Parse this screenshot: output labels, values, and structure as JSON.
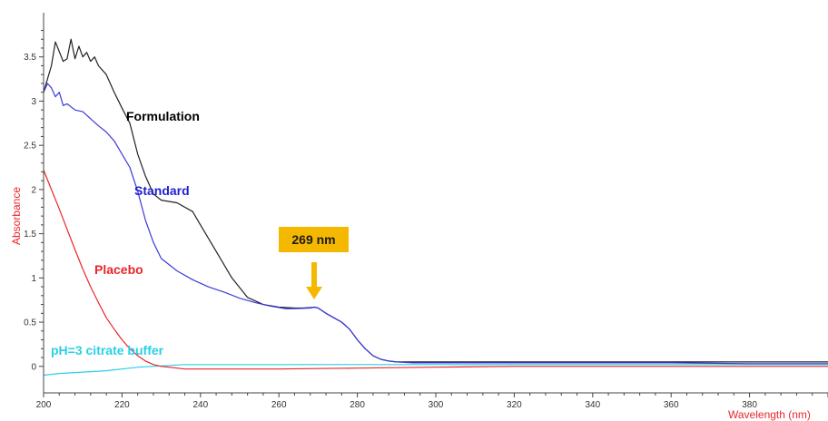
{
  "chart_data": {
    "type": "line",
    "xlabel": "Wavelength (nm)",
    "ylabel": "Absorbance",
    "xlim": [
      200,
      400
    ],
    "ylim": [
      -0.3,
      4.0
    ],
    "x_ticks": [
      200,
      220,
      240,
      260,
      280,
      300,
      320,
      340,
      360,
      380
    ],
    "y_ticks": [
      0,
      0.5,
      1,
      1.5,
      2,
      2.5,
      3,
      3.5
    ],
    "y_tick_labels": [
      "0",
      "0.5",
      "1",
      "1.5",
      "2",
      "2.5",
      "3",
      "3.5"
    ],
    "grid": false,
    "colors": {
      "axis_title_y": "#e8262b",
      "axis_title_x": "#e8262b",
      "callout_box": "#f5b800",
      "callout_arrow": "#f5b800"
    },
    "series": [
      {
        "name": "Formulation",
        "color": "#222222",
        "label_color": "#000000",
        "x": [
          200,
          202,
          203,
          205,
          206,
          207,
          208,
          209,
          210,
          211,
          212,
          213,
          214,
          216,
          218,
          220,
          222,
          224,
          226,
          228,
          230,
          234,
          238,
          240,
          244,
          248,
          252,
          256,
          260,
          264,
          266,
          268,
          269,
          270,
          272,
          274,
          276,
          278,
          280,
          282,
          284,
          286,
          288,
          290,
          292,
          294,
          300,
          320,
          340,
          360,
          380,
          400
        ],
        "y": [
          3.1,
          3.4,
          3.67,
          3.45,
          3.48,
          3.7,
          3.48,
          3.62,
          3.5,
          3.55,
          3.45,
          3.5,
          3.4,
          3.3,
          3.1,
          2.92,
          2.75,
          2.4,
          2.15,
          1.95,
          1.88,
          1.85,
          1.75,
          1.6,
          1.3,
          1.0,
          0.78,
          0.7,
          0.67,
          0.66,
          0.66,
          0.665,
          0.67,
          0.66,
          0.6,
          0.55,
          0.5,
          0.42,
          0.3,
          0.2,
          0.12,
          0.08,
          0.06,
          0.05,
          0.05,
          0.05,
          0.05,
          0.05,
          0.05,
          0.05,
          0.05,
          0.05
        ]
      },
      {
        "name": "Standard",
        "color": "#3b3bd9",
        "label_color": "#1f1fd0",
        "x": [
          200,
          201,
          202,
          203,
          204,
          205,
          206,
          208,
          210,
          212,
          214,
          216,
          218,
          220,
          222,
          224,
          226,
          228,
          230,
          234,
          238,
          242,
          246,
          250,
          254,
          258,
          262,
          266,
          268,
          269,
          270,
          272,
          274,
          276,
          278,
          280,
          282,
          284,
          286,
          288,
          290,
          292,
          294,
          300,
          320,
          340,
          360,
          380,
          400
        ],
        "y": [
          3.1,
          3.2,
          3.15,
          3.05,
          3.1,
          2.95,
          2.97,
          2.9,
          2.88,
          2.8,
          2.72,
          2.65,
          2.55,
          2.4,
          2.25,
          1.98,
          1.65,
          1.4,
          1.22,
          1.08,
          0.98,
          0.9,
          0.84,
          0.77,
          0.72,
          0.68,
          0.65,
          0.655,
          0.66,
          0.67,
          0.66,
          0.6,
          0.55,
          0.5,
          0.42,
          0.3,
          0.2,
          0.12,
          0.08,
          0.06,
          0.05,
          0.045,
          0.04,
          0.04,
          0.04,
          0.04,
          0.04,
          0.03,
          0.03
        ]
      },
      {
        "name": "Placebo",
        "color": "#e8262b",
        "label_color": "#e8262b",
        "x": [
          200,
          202,
          204,
          206,
          208,
          210,
          212,
          214,
          216,
          218,
          220,
          222,
          224,
          226,
          228,
          230,
          232,
          234,
          236,
          238,
          240,
          244,
          250,
          260,
          280,
          300,
          320,
          340,
          360,
          380,
          400
        ],
        "y": [
          2.22,
          2.0,
          1.78,
          1.55,
          1.32,
          1.1,
          0.9,
          0.72,
          0.55,
          0.42,
          0.3,
          0.2,
          0.12,
          0.06,
          0.02,
          0.0,
          -0.01,
          -0.02,
          -0.03,
          -0.03,
          -0.03,
          -0.03,
          -0.03,
          -0.03,
          -0.02,
          -0.01,
          0.0,
          0.0,
          0.0,
          0.0,
          0.0
        ]
      },
      {
        "name": "pH=3 citrate buffer",
        "color": "#29d0e6",
        "label_color": "#29d0e6",
        "x": [
          200,
          204,
          208,
          212,
          216,
          220,
          224,
          228,
          232,
          236,
          240,
          260,
          280,
          300,
          320,
          340,
          360,
          380,
          400
        ],
        "y": [
          -0.1,
          -0.08,
          -0.07,
          -0.06,
          -0.05,
          -0.03,
          -0.01,
          0.0,
          0.01,
          0.02,
          0.02,
          0.02,
          0.02,
          0.02,
          0.02,
          0.02,
          0.02,
          0.02,
          0.02
        ]
      }
    ],
    "annotations": [
      {
        "text": "269 nm",
        "x": 269,
        "y": 0.67,
        "type": "callout-arrow"
      }
    ]
  }
}
